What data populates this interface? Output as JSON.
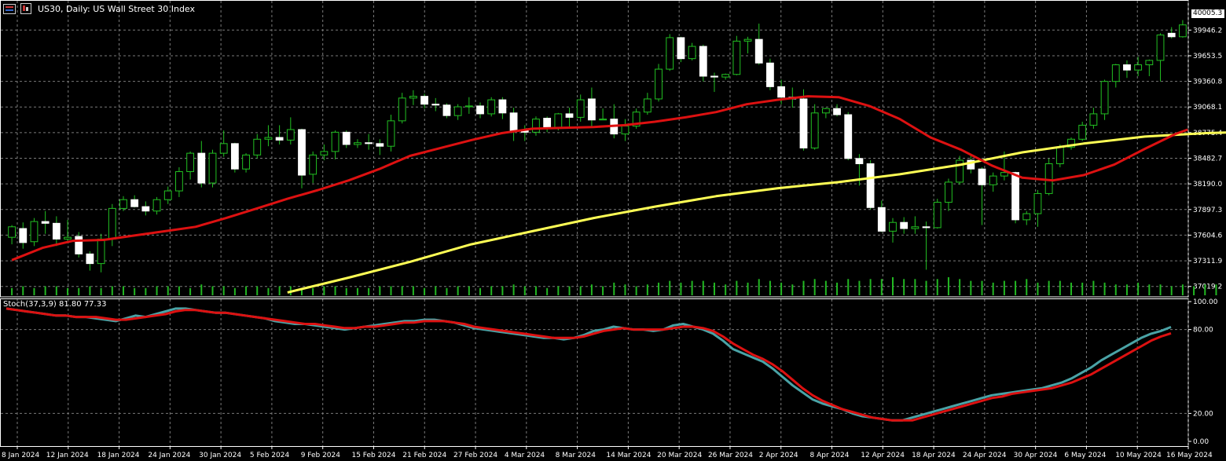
{
  "header": {
    "title": "US30, Daily:  US Wall Street 30 Index"
  },
  "stochastic": {
    "label": "Stoch(37,3,9) 81.80 77.33",
    "ticks": [
      "100.00",
      "80.00",
      "20.00",
      "0.00"
    ],
    "k": [
      95,
      94,
      93,
      92,
      91,
      90,
      90,
      89,
      89,
      88,
      87,
      86,
      88,
      90,
      89,
      91,
      93,
      95,
      95,
      94,
      93,
      92,
      92,
      91,
      90,
      89,
      88,
      86,
      85,
      84,
      84,
      83,
      82,
      81,
      80,
      81,
      82,
      83,
      84,
      85,
      86,
      86,
      87,
      87,
      86,
      85,
      83,
      81,
      80,
      79,
      78,
      77,
      76,
      75,
      74,
      74,
      73,
      74,
      76,
      79,
      80,
      82,
      81,
      80,
      80,
      79,
      80,
      83,
      84,
      82,
      80,
      77,
      72,
      66,
      63,
      60,
      57,
      52,
      46,
      40,
      35,
      30,
      27,
      25,
      23,
      20,
      18,
      17,
      16,
      15,
      15,
      17,
      19,
      21,
      23,
      25,
      27,
      29,
      31,
      33,
      34,
      35,
      36,
      37,
      38,
      40,
      42,
      45,
      49,
      53,
      58,
      62,
      66,
      70,
      74,
      77,
      79,
      81.8
    ],
    "d": [
      95,
      94,
      93,
      92,
      91,
      90,
      90,
      89,
      89,
      89,
      88,
      87,
      87,
      88,
      89,
      90,
      91,
      93,
      94,
      94,
      93,
      92,
      92,
      91,
      90,
      89,
      88,
      87,
      86,
      85,
      84,
      84,
      83,
      82,
      81,
      81,
      82,
      82,
      83,
      84,
      85,
      85,
      86,
      86,
      86,
      85,
      84,
      82,
      81,
      80,
      79,
      78,
      77,
      76,
      75,
      74,
      74,
      74,
      75,
      77,
      79,
      80,
      81,
      80,
      80,
      80,
      80,
      81,
      82,
      82,
      81,
      79,
      75,
      70,
      66,
      62,
      59,
      55,
      50,
      44,
      38,
      33,
      29,
      26,
      23,
      21,
      19,
      17,
      16,
      15,
      15,
      15,
      17,
      19,
      21,
      23,
      25,
      27,
      29,
      31,
      32,
      34,
      35,
      36,
      37,
      38,
      40,
      42,
      45,
      48,
      52,
      56,
      60,
      64,
      68,
      72,
      75,
      77.33
    ]
  },
  "chart_data": {
    "type": "candlestick",
    "title": "US30, Daily:  US Wall Street 30 Index",
    "x_tick_labels": [
      "8 Jan 2024",
      "12 Jan 2024",
      "18 Jan 2024",
      "24 Jan 2024",
      "30 Jan 2024",
      "5 Feb 2024",
      "9 Feb 2024",
      "15 Feb 2024",
      "21 Feb 2024",
      "27 Feb 2024",
      "4 Mar 2024",
      "8 Mar 2024",
      "14 Mar 2024",
      "20 Mar 2024",
      "26 Mar 2024",
      "2 Apr 2024",
      "8 Apr 2024",
      "12 Apr 2024",
      "18 Apr 2024",
      "24 Apr 2024",
      "30 Apr 2024",
      "6 May 2024",
      "10 May 2024",
      "16 May 2024"
    ],
    "y_tick_labels": [
      "39946.2",
      "39653.5",
      "39360.8",
      "39068.1",
      "38775.4",
      "38482.7",
      "38190.0",
      "37897.3",
      "37604.6",
      "37311.9",
      "37019.2"
    ],
    "last_price": "40005.3",
    "ylim": [
      36900,
      40200
    ],
    "candles": [
      [
        37580,
        37720,
        37500,
        37700
      ],
      [
        37680,
        37750,
        37450,
        37520
      ],
      [
        37530,
        37800,
        37480,
        37760
      ],
      [
        37760,
        37880,
        37620,
        37740
      ],
      [
        37740,
        37820,
        37480,
        37560
      ],
      [
        37560,
        37780,
        37520,
        37580
      ],
      [
        37590,
        37640,
        37350,
        37390
      ],
      [
        37390,
        37420,
        37200,
        37280
      ],
      [
        37280,
        37620,
        37180,
        37560
      ],
      [
        37560,
        37960,
        37480,
        37910
      ],
      [
        37910,
        38050,
        37880,
        38010
      ],
      [
        38010,
        38060,
        37920,
        37930
      ],
      [
        37930,
        37990,
        37830,
        37880
      ],
      [
        37880,
        38040,
        37840,
        38010
      ],
      [
        38010,
        38160,
        37960,
        38110
      ],
      [
        38110,
        38380,
        38040,
        38330
      ],
      [
        38330,
        38560,
        38240,
        38540
      ],
      [
        38540,
        38680,
        38150,
        38200
      ],
      [
        38200,
        38580,
        38150,
        38540
      ],
      [
        38540,
        38800,
        38500,
        38650
      ],
      [
        38650,
        38660,
        38320,
        38360
      ],
      [
        38360,
        38540,
        38320,
        38520
      ],
      [
        38520,
        38760,
        38480,
        38700
      ],
      [
        38700,
        38860,
        38620,
        38720
      ],
      [
        38720,
        38860,
        38640,
        38690
      ],
      [
        38690,
        38950,
        38640,
        38810
      ],
      [
        38810,
        38820,
        38140,
        38290
      ],
      [
        38300,
        38560,
        38200,
        38520
      ],
      [
        38520,
        38640,
        38460,
        38560
      ],
      [
        38560,
        38800,
        38470,
        38780
      ],
      [
        38780,
        38800,
        38600,
        38640
      ],
      [
        38640,
        38700,
        38600,
        38660
      ],
      [
        38660,
        38760,
        38580,
        38650
      ],
      [
        38650,
        38700,
        38520,
        38620
      ],
      [
        38620,
        38980,
        38560,
        38910
      ],
      [
        38910,
        39230,
        38880,
        39170
      ],
      [
        39170,
        39260,
        39090,
        39190
      ],
      [
        39190,
        39220,
        39050,
        39100
      ],
      [
        39100,
        39170,
        39020,
        39090
      ],
      [
        39090,
        39110,
        38940,
        38970
      ],
      [
        38970,
        39100,
        38920,
        39070
      ],
      [
        39070,
        39180,
        38990,
        39080
      ],
      [
        39080,
        39120,
        38940,
        38990
      ],
      [
        38990,
        39180,
        38960,
        39150
      ],
      [
        39150,
        39180,
        38930,
        39000
      ],
      [
        39000,
        39060,
        38680,
        38800
      ],
      [
        38800,
        38860,
        38680,
        38780
      ],
      [
        38780,
        38960,
        38740,
        38930
      ],
      [
        38940,
        38960,
        38780,
        38830
      ],
      [
        38830,
        39000,
        38800,
        38990
      ],
      [
        38990,
        39060,
        38840,
        38950
      ],
      [
        38950,
        39210,
        38900,
        39150
      ],
      [
        39160,
        39290,
        38850,
        38920
      ],
      [
        38920,
        39050,
        38920,
        38930
      ],
      [
        38930,
        39100,
        38710,
        38760
      ],
      [
        38760,
        38930,
        38680,
        38850
      ],
      [
        38850,
        39050,
        38820,
        39010
      ],
      [
        39010,
        39230,
        38980,
        39160
      ],
      [
        39160,
        39560,
        39130,
        39500
      ],
      [
        39500,
        39900,
        39480,
        39860
      ],
      [
        39860,
        39870,
        39580,
        39620
      ],
      [
        39620,
        39800,
        39600,
        39760
      ],
      [
        39760,
        39780,
        39360,
        39420
      ],
      [
        39420,
        39460,
        39240,
        39410
      ],
      [
        39410,
        39450,
        39380,
        39440
      ],
      [
        39440,
        39880,
        39430,
        39820
      ],
      [
        39820,
        39870,
        39680,
        39840
      ],
      [
        39840,
        40020,
        39550,
        39570
      ],
      [
        39570,
        39620,
        39260,
        39300
      ],
      [
        39300,
        39380,
        39100,
        39180
      ],
      [
        39180,
        39290,
        39060,
        39160
      ],
      [
        39160,
        39270,
        38570,
        38600
      ],
      [
        38600,
        39100,
        38580,
        39000
      ],
      [
        39000,
        39060,
        38940,
        39050
      ],
      [
        39050,
        39100,
        38960,
        38980
      ],
      [
        38980,
        39010,
        38460,
        38480
      ],
      [
        38480,
        38530,
        38170,
        38420
      ],
      [
        38420,
        38460,
        37900,
        37920
      ],
      [
        37920,
        38000,
        37640,
        37650
      ],
      [
        37650,
        37800,
        37520,
        37750
      ],
      [
        37750,
        37810,
        37620,
        37680
      ],
      [
        37680,
        37820,
        37620,
        37700
      ],
      [
        37700,
        37760,
        37210,
        37690
      ],
      [
        37690,
        38020,
        37680,
        37980
      ],
      [
        37980,
        38250,
        37880,
        38210
      ],
      [
        38210,
        38510,
        38180,
        38460
      ],
      [
        38460,
        38520,
        38310,
        38360
      ],
      [
        38360,
        38380,
        37720,
        38180
      ],
      [
        38180,
        38320,
        38100,
        38280
      ],
      [
        38280,
        38560,
        38230,
        38320
      ],
      [
        38320,
        38330,
        37740,
        37780
      ],
      [
        37780,
        37880,
        37720,
        37850
      ],
      [
        37850,
        38120,
        37700,
        38080
      ],
      [
        38080,
        38480,
        38060,
        38420
      ],
      [
        38420,
        38640,
        38380,
        38610
      ],
      [
        38610,
        38720,
        38580,
        38700
      ],
      [
        38700,
        38900,
        38680,
        38860
      ],
      [
        38860,
        39060,
        38820,
        38990
      ],
      [
        38990,
        39380,
        38920,
        39360
      ],
      [
        39360,
        39560,
        39290,
        39550
      ],
      [
        39550,
        39600,
        39400,
        39490
      ],
      [
        39490,
        39640,
        39420,
        39550
      ],
      [
        39550,
        39610,
        39420,
        39600
      ],
      [
        39600,
        39910,
        39360,
        39890
      ],
      [
        39910,
        39980,
        39850,
        39870
      ],
      [
        39870,
        40060,
        39860,
        40005.3
      ]
    ],
    "ma_red": [
      [
        0,
        37320
      ],
      [
        5,
        37460
      ],
      [
        10,
        37540
      ],
      [
        15,
        37550
      ],
      [
        20,
        37600
      ],
      [
        25,
        37650
      ],
      [
        30,
        37700
      ],
      [
        35,
        37800
      ],
      [
        40,
        37910
      ],
      [
        45,
        38020
      ],
      [
        50,
        38120
      ],
      [
        55,
        38230
      ],
      [
        60,
        38360
      ],
      [
        65,
        38510
      ],
      [
        70,
        38600
      ],
      [
        75,
        38690
      ],
      [
        80,
        38770
      ],
      [
        85,
        38820
      ],
      [
        90,
        38830
      ],
      [
        95,
        38840
      ],
      [
        100,
        38860
      ],
      [
        105,
        38900
      ],
      [
        110,
        38950
      ],
      [
        115,
        39010
      ],
      [
        120,
        39100
      ],
      [
        125,
        39150
      ],
      [
        130,
        39190
      ],
      [
        135,
        39180
      ],
      [
        140,
        39080
      ],
      [
        145,
        38930
      ],
      [
        150,
        38720
      ],
      [
        155,
        38580
      ],
      [
        160,
        38400
      ],
      [
        165,
        38260
      ],
      [
        170,
        38230
      ],
      [
        175,
        38290
      ],
      [
        180,
        38410
      ],
      [
        185,
        38590
      ],
      [
        190,
        38760
      ],
      [
        192,
        38810
      ]
    ],
    "ma_yellow": [
      [
        45,
        36950
      ],
      [
        55,
        37120
      ],
      [
        65,
        37300
      ],
      [
        75,
        37500
      ],
      [
        85,
        37650
      ],
      [
        95,
        37800
      ],
      [
        105,
        37930
      ],
      [
        115,
        38050
      ],
      [
        125,
        38140
      ],
      [
        135,
        38210
      ],
      [
        145,
        38300
      ],
      [
        155,
        38410
      ],
      [
        165,
        38550
      ],
      [
        175,
        38650
      ],
      [
        185,
        38730
      ],
      [
        195,
        38770
      ],
      [
        205,
        38790
      ],
      [
        215,
        38780
      ],
      [
        225,
        38750
      ],
      [
        235,
        38720
      ],
      [
        245,
        38700
      ],
      [
        255,
        38690
      ],
      [
        265,
        38680
      ],
      [
        275,
        38680
      ],
      [
        282,
        38700
      ],
      [
        288,
        38760
      ],
      [
        292,
        38810
      ]
    ],
    "volume": [
      4,
      5,
      4,
      5,
      5,
      4,
      4,
      5,
      4,
      5,
      5,
      4,
      4,
      5,
      5,
      5,
      4,
      6,
      5,
      5,
      4,
      5,
      5,
      4,
      5,
      5,
      4,
      4,
      5,
      5,
      4,
      4,
      4,
      5,
      5,
      5,
      5,
      4,
      5,
      4,
      5,
      5,
      4,
      5,
      5,
      6,
      5,
      5,
      4,
      5,
      5,
      5,
      6,
      5,
      7,
      6,
      5,
      6,
      7,
      8,
      7,
      8,
      8,
      7,
      6,
      8,
      7,
      9,
      8,
      7,
      6,
      8,
      9,
      8,
      7,
      9,
      8,
      9,
      9,
      10,
      9,
      9,
      8,
      9,
      10,
      9,
      8,
      8,
      7,
      8,
      8,
      9,
      7,
      8,
      8,
      7,
      7,
      8,
      7,
      6,
      6,
      7,
      6,
      6,
      5,
      6,
      5,
      6,
      6,
      6,
      6
    ]
  }
}
